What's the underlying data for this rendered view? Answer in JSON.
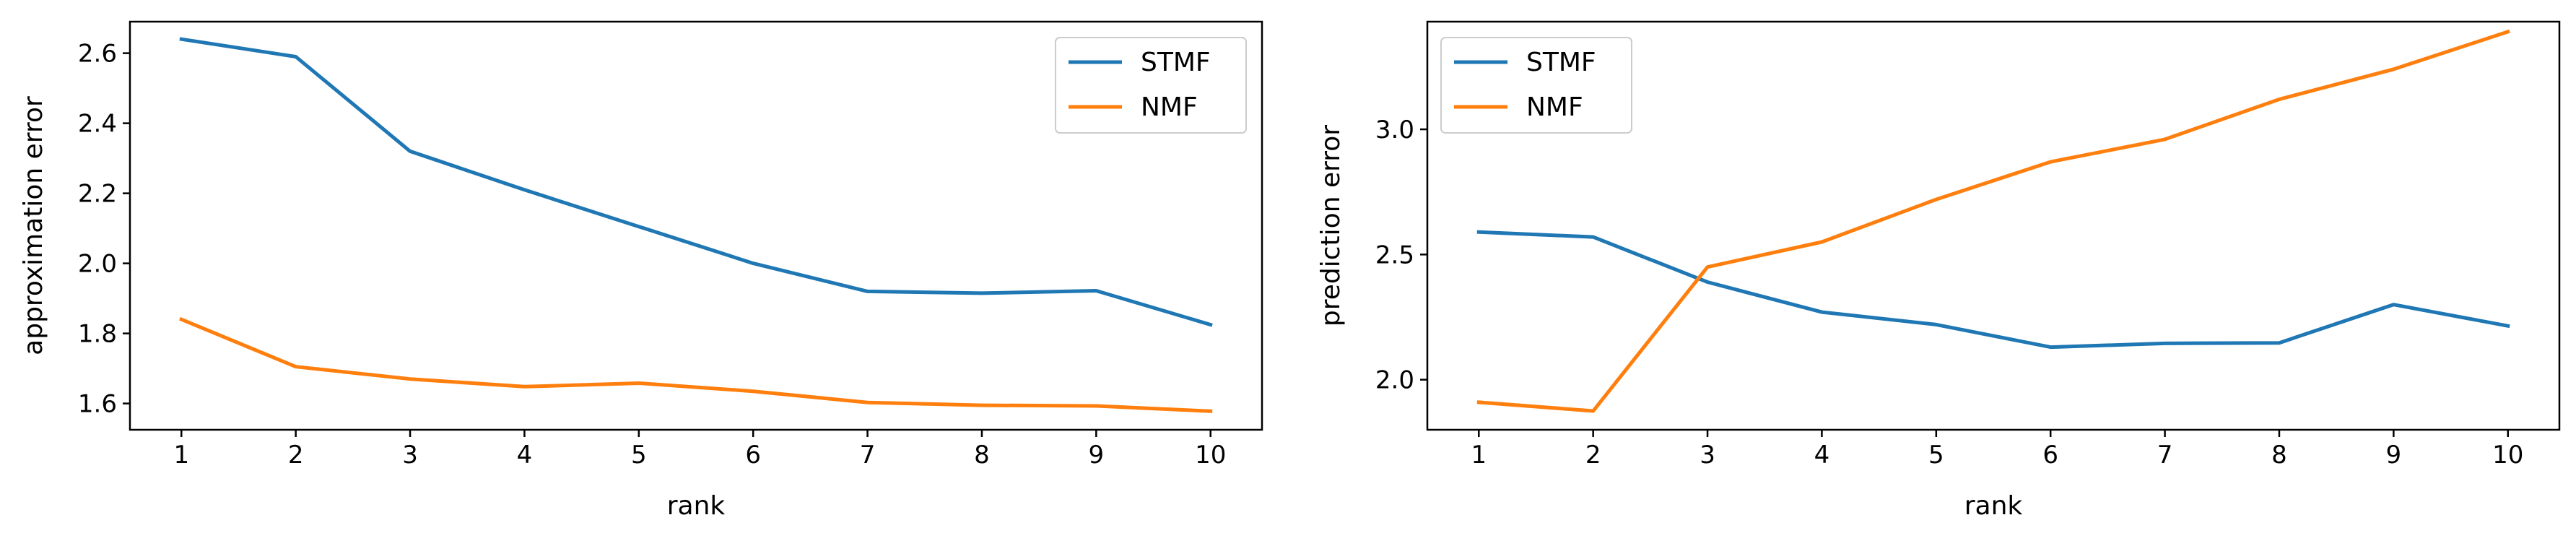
{
  "colors": {
    "stmf": "#1f77b4",
    "nmf": "#ff7f0e",
    "axis": "#000000",
    "legend_border": "#cccccc"
  },
  "chart_data": [
    {
      "type": "line",
      "title": "",
      "xlabel": "rank",
      "ylabel": "approximation error",
      "x": [
        1,
        2,
        3,
        4,
        5,
        6,
        7,
        8,
        9,
        10
      ],
      "xlim": [
        0.55,
        10.45
      ],
      "ylim": [
        1.525,
        2.69
      ],
      "yticks": [
        1.6,
        1.8,
        2.0,
        2.2,
        2.4,
        2.6
      ],
      "ytick_labels": [
        "1.6",
        "1.8",
        "2.0",
        "2.2",
        "2.4",
        "2.6"
      ],
      "xtick_labels": [
        "1",
        "2",
        "3",
        "4",
        "5",
        "6",
        "7",
        "8",
        "9",
        "10"
      ],
      "grid": false,
      "legend_position": "top-right",
      "series": [
        {
          "name": "STMF",
          "color": "#1f77b4",
          "values": [
            2.64,
            2.59,
            2.32,
            2.21,
            2.105,
            2.0,
            1.92,
            1.915,
            1.922,
            1.825
          ]
        },
        {
          "name": "NMF",
          "color": "#ff7f0e",
          "values": [
            1.84,
            1.705,
            1.67,
            1.648,
            1.658,
            1.635,
            1.603,
            1.595,
            1.593,
            1.578
          ]
        }
      ]
    },
    {
      "type": "line",
      "title": "",
      "xlabel": "rank",
      "ylabel": "prediction error",
      "x": [
        1,
        2,
        3,
        4,
        5,
        6,
        7,
        8,
        9,
        10
      ],
      "xlim": [
        0.55,
        10.45
      ],
      "ylim": [
        1.8,
        3.43
      ],
      "yticks": [
        2.0,
        2.5,
        3.0
      ],
      "ytick_labels": [
        "2.0",
        "2.5",
        "3.0"
      ],
      "xtick_labels": [
        "1",
        "2",
        "3",
        "4",
        "5",
        "6",
        "7",
        "8",
        "9",
        "10"
      ],
      "grid": false,
      "legend_position": "top-left",
      "series": [
        {
          "name": "STMF",
          "color": "#1f77b4",
          "values": [
            2.59,
            2.57,
            2.39,
            2.27,
            2.22,
            2.13,
            2.145,
            2.147,
            2.3,
            2.215
          ]
        },
        {
          "name": "NMF",
          "color": "#ff7f0e",
          "values": [
            1.91,
            1.875,
            2.45,
            2.55,
            2.72,
            2.87,
            2.96,
            3.12,
            3.24,
            3.39
          ]
        }
      ]
    }
  ]
}
